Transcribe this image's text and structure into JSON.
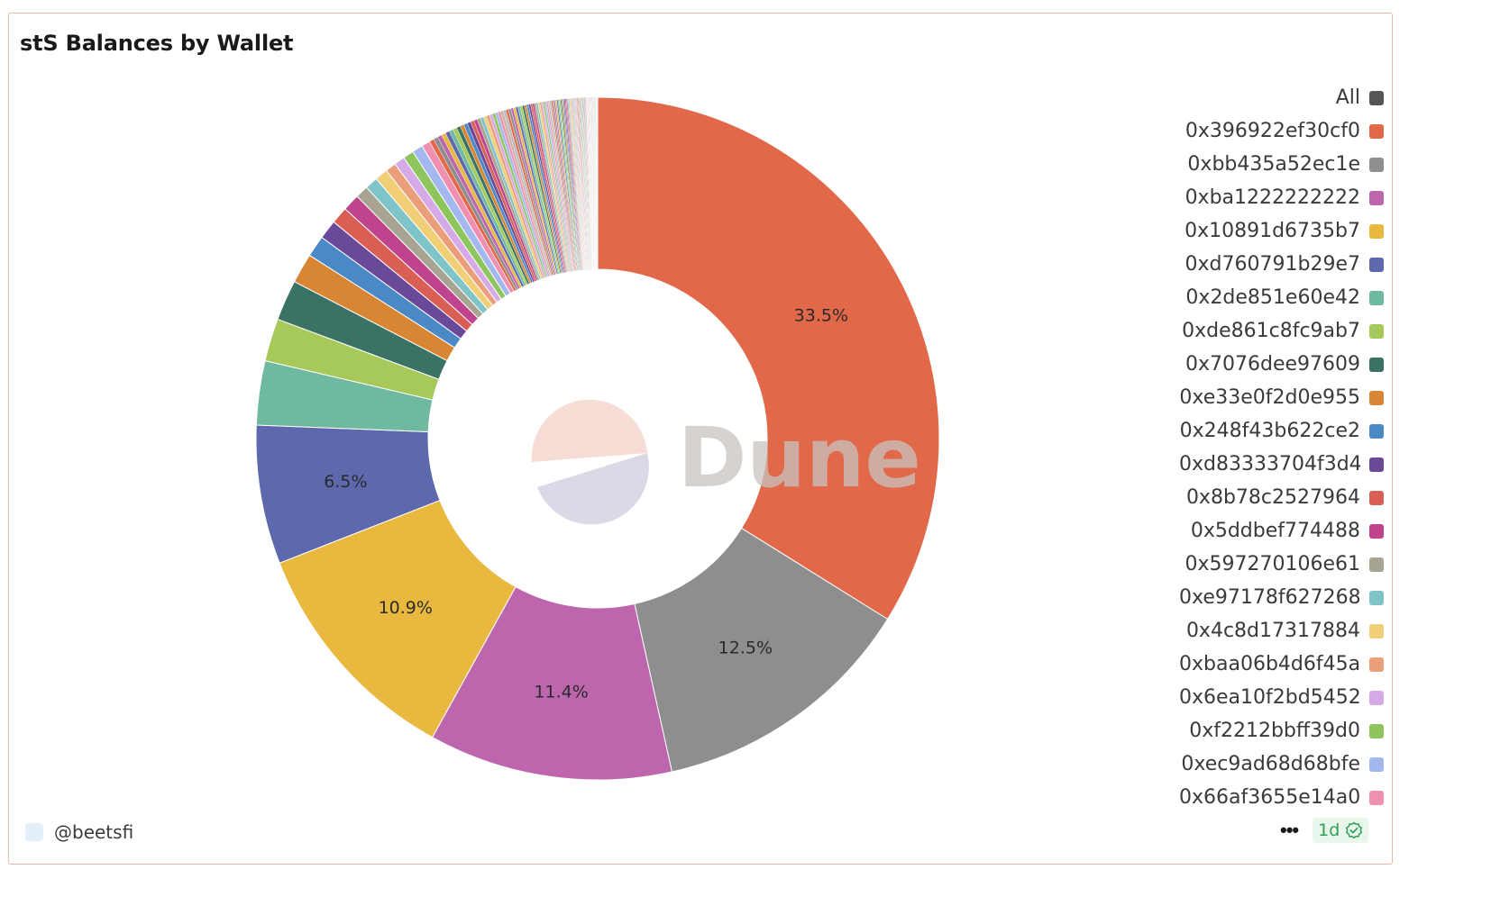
{
  "title": "stS Balances by Wallet",
  "watermark": "Dune",
  "author": "@beetsfi",
  "more_label": "•••",
  "freshness": "1d",
  "chart_data": {
    "type": "pie",
    "donut": true,
    "title": "stS Balances by Wallet",
    "slices": [
      {
        "label": "0x396922ef30cf0",
        "value": 33.5,
        "color": "#e2684a",
        "show_label": true
      },
      {
        "label": "0xbb435a52ec1e",
        "value": 12.5,
        "color": "#8e8e8e",
        "show_label": true
      },
      {
        "label": "0xba1222222222",
        "value": 11.4,
        "color": "#be66ad",
        "show_label": true
      },
      {
        "label": "0x10891d6735b7",
        "value": 10.9,
        "color": "#e8b83f",
        "show_label": true
      },
      {
        "label": "0xd760791b29e7",
        "value": 6.5,
        "color": "#5e68ad",
        "show_label": true
      },
      {
        "label": "0x2de851e60e42",
        "value": 3.0,
        "color": "#6fb9a1",
        "show_label": false
      },
      {
        "label": "0xde861c8fc9ab7",
        "value": 2.0,
        "color": "#a6c95a",
        "show_label": false
      },
      {
        "label": "0x7076dee97609",
        "value": 1.9,
        "color": "#3a7266",
        "show_label": false
      },
      {
        "label": "0xe33e0f2d0e955",
        "value": 1.4,
        "color": "#d98634",
        "show_label": false
      },
      {
        "label": "0x248f43b622ce2",
        "value": 1.0,
        "color": "#4a88c6",
        "show_label": false
      },
      {
        "label": "0xd83333704f3d4",
        "value": 0.9,
        "color": "#6a4999",
        "show_label": false
      },
      {
        "label": "0x8b78c2527964",
        "value": 0.8,
        "color": "#d95f54",
        "show_label": false
      },
      {
        "label": "0x5ddbef774488",
        "value": 0.8,
        "color": "#c0438e",
        "show_label": false
      },
      {
        "label": "0x597270106e61",
        "value": 0.6,
        "color": "#a7a591",
        "show_label": false
      },
      {
        "label": "0xe97178f627268",
        "value": 0.6,
        "color": "#7ec4c9",
        "show_label": false
      },
      {
        "label": "0x4c8d17317884",
        "value": 0.6,
        "color": "#f0cf77",
        "show_label": false
      },
      {
        "label": "0xbaa06b4d6f45a",
        "value": 0.5,
        "color": "#ea9e79",
        "show_label": false
      },
      {
        "label": "0x6ea10f2bd5452",
        "value": 0.5,
        "color": "#d5aae6",
        "show_label": false
      },
      {
        "label": "0xf2212bbff39d0",
        "value": 0.5,
        "color": "#8ec55c",
        "show_label": false
      },
      {
        "label": "0xec9ad68d68bfe",
        "value": 0.5,
        "color": "#a2b8ef",
        "show_label": false
      },
      {
        "label": "0x66af3655e14a0",
        "value": 0.4,
        "color": "#ef90b1",
        "show_label": false
      }
    ],
    "other_slices": {
      "total_value": 8.1,
      "count": 110,
      "palette": [
        "#e2684a",
        "#8e8e8e",
        "#be66ad",
        "#e8b83f",
        "#5e68ad",
        "#6fb9a1",
        "#a6c95a",
        "#3a7266",
        "#d98634",
        "#4a88c6",
        "#6a4999",
        "#d95f54",
        "#c0438e",
        "#a7a591",
        "#7ec4c9",
        "#f0cf77",
        "#ea9e79",
        "#d5aae6",
        "#8ec55c",
        "#a2b8ef",
        "#ef90b1",
        "#c9b3a6",
        "#b8b8b8"
      ]
    },
    "legend": {
      "position": "right",
      "items": [
        {
          "label": "All",
          "color": "#555555"
        },
        {
          "label": "0x396922ef30cf0",
          "color": "#e2684a"
        },
        {
          "label": "0xbb435a52ec1e",
          "color": "#8e8e8e"
        },
        {
          "label": "0xba1222222222",
          "color": "#be66ad"
        },
        {
          "label": "0x10891d6735b7",
          "color": "#e8b83f"
        },
        {
          "label": "0xd760791b29e7",
          "color": "#5e68ad"
        },
        {
          "label": "0x2de851e60e42",
          "color": "#6fb9a1"
        },
        {
          "label": "0xde861c8fc9ab7",
          "color": "#a6c95a"
        },
        {
          "label": "0x7076dee97609",
          "color": "#3a7266"
        },
        {
          "label": "0xe33e0f2d0e955",
          "color": "#d98634"
        },
        {
          "label": "0x248f43b622ce2",
          "color": "#4a88c6"
        },
        {
          "label": "0xd83333704f3d4",
          "color": "#6a4999"
        },
        {
          "label": "0x8b78c2527964",
          "color": "#d95f54"
        },
        {
          "label": "0x5ddbef774488",
          "color": "#c0438e"
        },
        {
          "label": "0x597270106e61",
          "color": "#a7a591"
        },
        {
          "label": "0xe97178f627268",
          "color": "#7ec4c9"
        },
        {
          "label": "0x4c8d17317884",
          "color": "#f0cf77"
        },
        {
          "label": "0xbaa06b4d6f45a",
          "color": "#ea9e79"
        },
        {
          "label": "0x6ea10f2bd5452",
          "color": "#d5aae6"
        },
        {
          "label": "0xf2212bbff39d0",
          "color": "#8ec55c"
        },
        {
          "label": "0xec9ad68d68bfe",
          "color": "#a2b8ef"
        },
        {
          "label": "0x66af3655e14a0",
          "color": "#ef90b1"
        }
      ]
    }
  }
}
